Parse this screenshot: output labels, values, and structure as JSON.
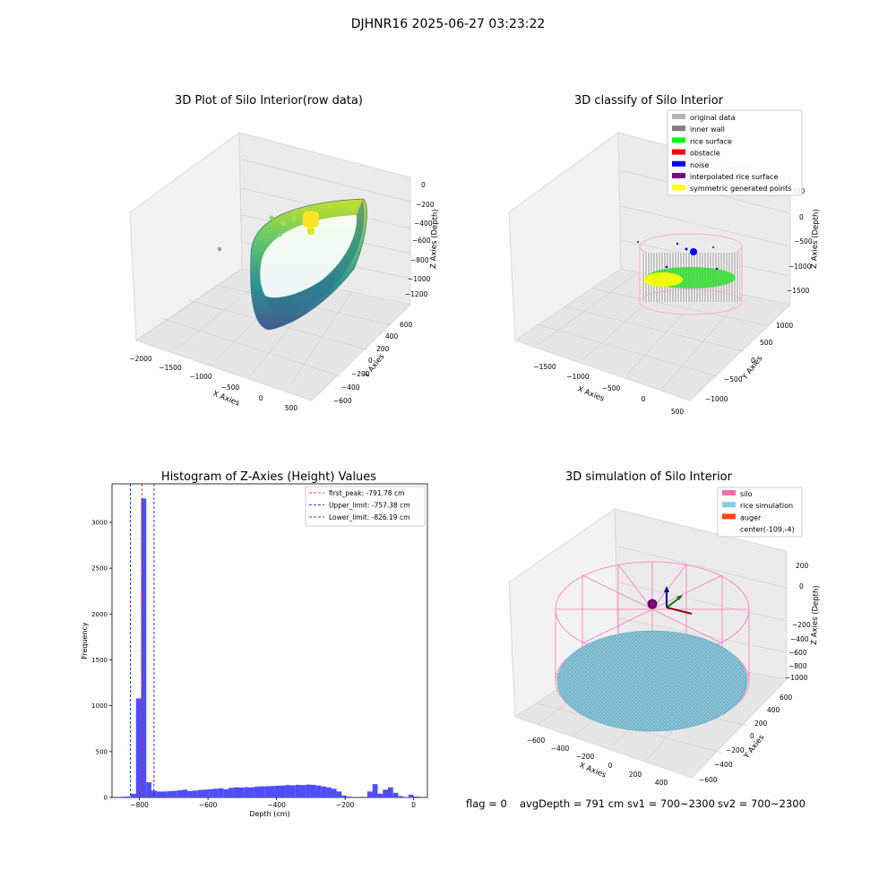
{
  "suptitle": "DJHNR16 2025-06-27 03:23:22",
  "footer": {
    "flag": "flag = 0",
    "avg_depth": "avgDepth = 791 cm",
    "sv1": "sv1 = 700~2300",
    "sv2": "sv2 = 700~2300"
  },
  "panels": {
    "raw": {
      "title": "3D Plot of Silo Interior(row data)",
      "xlabel": "X Axies",
      "ylabel": "Y Axies",
      "zlabel": "Z Axies (Depth)",
      "xticks": [
        "−2000",
        "−1500",
        "−1000",
        "−500",
        "0",
        "500"
      ],
      "yticks": [
        "−600",
        "−400",
        "−200",
        "0",
        "200",
        "400",
        "600"
      ],
      "zticks": [
        "−1200",
        "−1000",
        "−800",
        "−600",
        "−400",
        "−200",
        "0"
      ]
    },
    "classify": {
      "title": "3D classify of Silo Interior",
      "xlabel": "X Axies",
      "ylabel": "Y Axies",
      "zlabel": "Z Axies (Depth)",
      "xticks": [
        "−1500",
        "−1000",
        "−500",
        "0",
        "500"
      ],
      "yticks": [
        "−1000",
        "−500",
        "0",
        "500",
        "1000"
      ],
      "zticks": [
        "−1500",
        "−1000",
        "−500",
        "0",
        "500"
      ],
      "legend": [
        {
          "label": "original data",
          "color": "#b3b3b3"
        },
        {
          "label": "inner wall",
          "color": "#808080"
        },
        {
          "label": "rice surface",
          "color": "#00ff00"
        },
        {
          "label": "obstacle",
          "color": "#ff0000"
        },
        {
          "label": "noise",
          "color": "#0000ff"
        },
        {
          "label": "interpolated rice surface",
          "color": "#800080"
        },
        {
          "label": "symmetric generated points",
          "color": "#ffff00"
        }
      ]
    },
    "simulation": {
      "title": "3D simulation of Silo Interior",
      "xlabel": "X Axies",
      "ylabel": "Y Axies",
      "zlabel": "Z Axies (Depth)",
      "xticks": [
        "−600",
        "−400",
        "−200",
        "0",
        "200",
        "400"
      ],
      "yticks": [
        "−600",
        "−400",
        "−200",
        "0",
        "200",
        "400",
        "600"
      ],
      "zticks": [
        "−1000",
        "−800",
        "−600",
        "−400",
        "−200",
        "0",
        "200"
      ],
      "legend": [
        {
          "label": "silo",
          "color": "#ff69b4"
        },
        {
          "label": "rice simulation",
          "color": "#87ceeb"
        },
        {
          "label": "auger",
          "color": "#ff4500"
        },
        {
          "label": "center(-109,-4)",
          "color": ""
        }
      ]
    }
  },
  "chart_data": {
    "type": "bar",
    "title": "Histogram of Z-Axies (Height) Values",
    "xlabel": "Depth (cm)",
    "ylabel": "Frequency",
    "xlim": [
      -880,
      40
    ],
    "ylim": [
      0,
      3420
    ],
    "xticks": [
      -800,
      -600,
      -400,
      -200,
      0
    ],
    "yticks": [
      0,
      500,
      1000,
      1500,
      2000,
      2500,
      3000
    ],
    "bin_width": 15,
    "bins": [
      {
        "x": -855,
        "v": 8
      },
      {
        "x": -840,
        "v": 10
      },
      {
        "x": -825,
        "v": 40
      },
      {
        "x": -810,
        "v": 1080
      },
      {
        "x": -795,
        "v": 3260
      },
      {
        "x": -780,
        "v": 165
      },
      {
        "x": -765,
        "v": 75
      },
      {
        "x": -750,
        "v": 65
      },
      {
        "x": -735,
        "v": 65
      },
      {
        "x": -720,
        "v": 68
      },
      {
        "x": -705,
        "v": 72
      },
      {
        "x": -690,
        "v": 78
      },
      {
        "x": -675,
        "v": 85
      },
      {
        "x": -660,
        "v": 70
      },
      {
        "x": -645,
        "v": 75
      },
      {
        "x": -630,
        "v": 82
      },
      {
        "x": -615,
        "v": 85
      },
      {
        "x": -600,
        "v": 90
      },
      {
        "x": -585,
        "v": 95
      },
      {
        "x": -570,
        "v": 100
      },
      {
        "x": -555,
        "v": 90
      },
      {
        "x": -540,
        "v": 105
      },
      {
        "x": -525,
        "v": 110
      },
      {
        "x": -510,
        "v": 108
      },
      {
        "x": -495,
        "v": 112
      },
      {
        "x": -480,
        "v": 110
      },
      {
        "x": -465,
        "v": 118
      },
      {
        "x": -450,
        "v": 120
      },
      {
        "x": -435,
        "v": 122
      },
      {
        "x": -420,
        "v": 125
      },
      {
        "x": -405,
        "v": 128
      },
      {
        "x": -390,
        "v": 130
      },
      {
        "x": -375,
        "v": 135
      },
      {
        "x": -360,
        "v": 132
      },
      {
        "x": -345,
        "v": 138
      },
      {
        "x": -330,
        "v": 135
      },
      {
        "x": -315,
        "v": 140
      },
      {
        "x": -300,
        "v": 138
      },
      {
        "x": -285,
        "v": 130
      },
      {
        "x": -270,
        "v": 120
      },
      {
        "x": -255,
        "v": 110
      },
      {
        "x": -240,
        "v": 95
      },
      {
        "x": -225,
        "v": 65
      },
      {
        "x": -210,
        "v": 20
      },
      {
        "x": -195,
        "v": 8
      },
      {
        "x": -135,
        "v": 65
      },
      {
        "x": -120,
        "v": 145
      },
      {
        "x": -105,
        "v": 40
      },
      {
        "x": -90,
        "v": 85
      },
      {
        "x": -75,
        "v": 110
      },
      {
        "x": -60,
        "v": 50
      },
      {
        "x": -45,
        "v": 15
      },
      {
        "x": -30,
        "v": 5
      },
      {
        "x": -15,
        "v": 30
      },
      {
        "x": 0,
        "v": 10
      }
    ],
    "series": [
      {
        "name": "first_peak: -791.78 cm",
        "x": -791.78,
        "color": "#ff0000"
      },
      {
        "name": "Upper_limit: -757.38 cm",
        "x": -757.38,
        "color": "#0000ff"
      },
      {
        "name": "Lower_limit: -826.19 cm",
        "x": -826.19,
        "color": "#0000ff"
      }
    ],
    "bar_color": "#4d4dff",
    "legend_position": "top-right"
  }
}
